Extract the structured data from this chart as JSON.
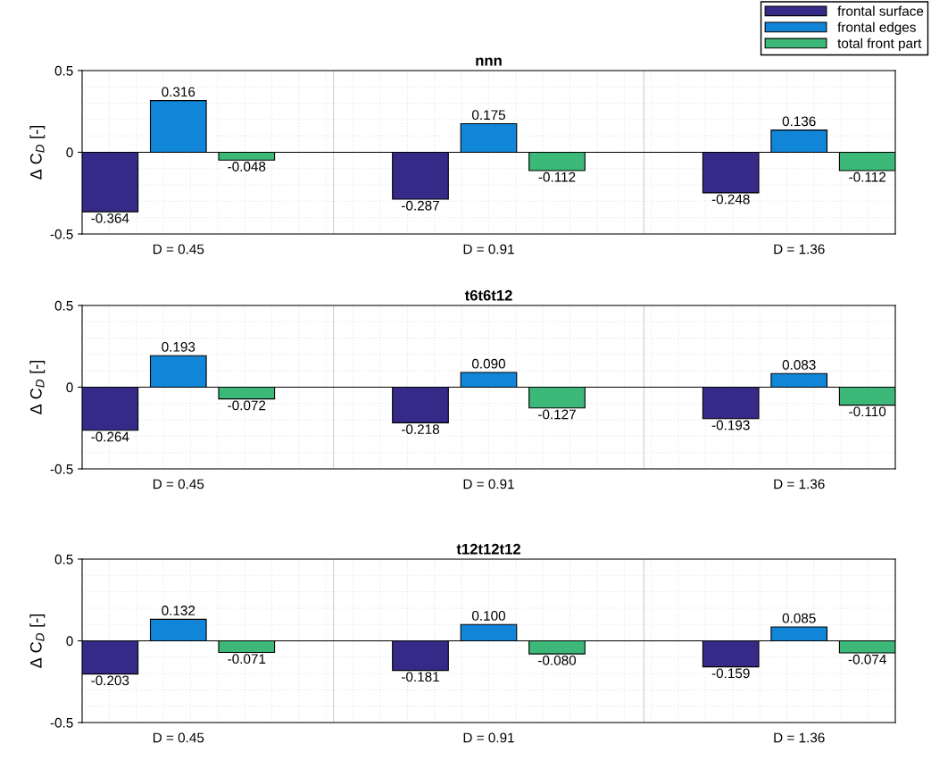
{
  "chart_data": [
    {
      "type": "bar",
      "title": "nnn",
      "ylabel": "Δ C$_{D}$ [-]",
      "categories": [
        "D = 0.45",
        "D = 0.91",
        "D = 1.36"
      ],
      "ylim": [
        -0.5,
        0.5
      ],
      "yticks": [
        -0.5,
        0,
        0.5
      ],
      "grid": true,
      "legend": "top right",
      "series": [
        {
          "name": "frontal surface",
          "color": "#352a87",
          "values": [
            -0.364,
            -0.287,
            -0.248
          ],
          "value_labels": [
            "-0.364",
            "-0.287",
            "-0.248"
          ]
        },
        {
          "name": "frontal edges",
          "color": "#1185d8",
          "values": [
            0.316,
            0.175,
            0.136
          ],
          "value_labels": [
            "0.316",
            "0.175",
            "0.136"
          ]
        },
        {
          "name": "total front part",
          "color": "#3cb878",
          "values": [
            -0.048,
            -0.112,
            -0.112
          ],
          "value_labels": [
            "-0.048",
            "-0.112",
            "-0.112"
          ]
        }
      ]
    },
    {
      "type": "bar",
      "title": "t6t6t12",
      "ylabel": "Δ C$_{D}$ [-]",
      "categories": [
        "D = 0.45",
        "D = 0.91",
        "D = 1.36"
      ],
      "ylim": [
        -0.5,
        0.5
      ],
      "yticks": [
        -0.5,
        0,
        0.5
      ],
      "grid": true,
      "series": [
        {
          "color": "#352a87",
          "values": [
            -0.264,
            -0.218,
            -0.193
          ],
          "value_labels": [
            "-0.264",
            "-0.218",
            "-0.193"
          ]
        },
        {
          "color": "#1185d8",
          "values": [
            0.193,
            0.09,
            0.083
          ],
          "value_labels": [
            "0.193",
            "0.090",
            "0.083"
          ]
        },
        {
          "color": "#3cb878",
          "values": [
            -0.072,
            -0.127,
            -0.11
          ],
          "value_labels": [
            "-0.072",
            "-0.127",
            "-0.110"
          ]
        }
      ]
    },
    {
      "type": "bar",
      "title": "t12t12t12",
      "ylabel": "Δ C$_{D}$ [-]",
      "categories": [
        "D = 0.45",
        "D = 0.91",
        "D = 1.36"
      ],
      "ylim": [
        -0.5,
        0.5
      ],
      "yticks": [
        -0.5,
        0,
        0.5
      ],
      "grid": true,
      "series": [
        {
          "color": "#352a87",
          "values": [
            -0.203,
            -0.181,
            -0.159
          ],
          "value_labels": [
            "-0.203",
            "-0.181",
            "-0.159"
          ]
        },
        {
          "color": "#1185d8",
          "values": [
            0.132,
            0.1,
            0.085
          ],
          "value_labels": [
            "0.132",
            "0.100",
            "0.085"
          ]
        },
        {
          "color": "#3cb878",
          "values": [
            -0.071,
            -0.08,
            -0.074
          ],
          "value_labels": [
            "-0.071",
            "-0.080",
            "-0.074"
          ]
        }
      ]
    }
  ]
}
